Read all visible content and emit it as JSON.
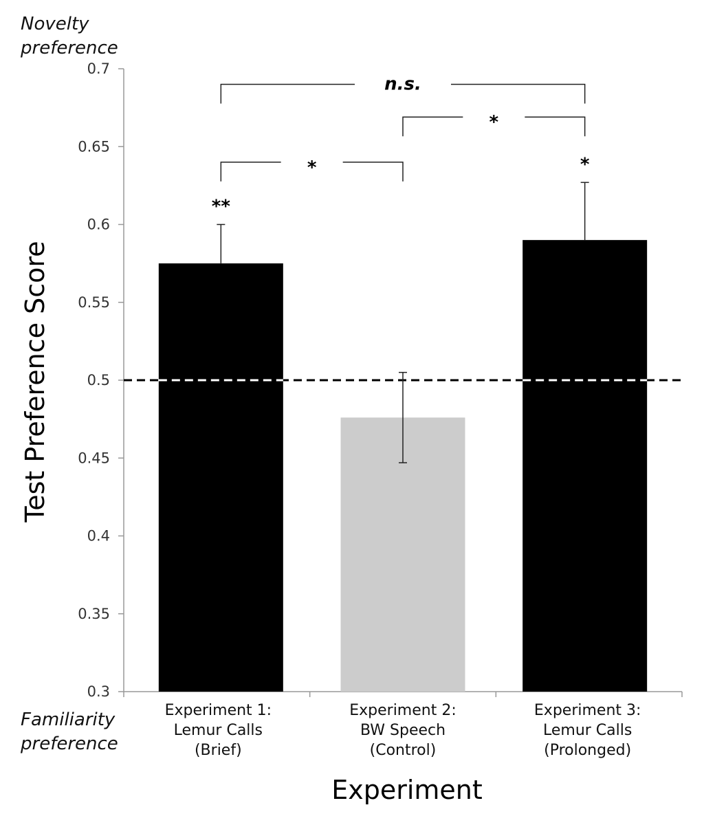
{
  "chart_data": {
    "type": "bar",
    "ylabel": "Test Preference Score",
    "xlabel": "Experiment",
    "ylim": [
      0.3,
      0.7
    ],
    "yticks": [
      "0.3",
      "0.35",
      "0.4",
      "0.45",
      "0.5",
      "0.55",
      "0.6",
      "0.65",
      "0.7"
    ],
    "y_top_annotation": [
      "Novelty",
      "preference"
    ],
    "y_bottom_annotation": [
      "Familiarity",
      "preference"
    ],
    "categories": [
      [
        "Experiment 1:",
        "Lemur Calls",
        "(Brief)"
      ],
      [
        "Experiment 2:",
        "BW Speech",
        "(Control)"
      ],
      [
        "Experiment 3:",
        "Lemur Calls",
        "(Prolonged)"
      ]
    ],
    "values": [
      0.575,
      0.476,
      0.59
    ],
    "error_upper": [
      0.6,
      0.505,
      0.627
    ],
    "error_lower": [
      null,
      0.447,
      null
    ],
    "bar_colors": [
      "#000000",
      "#cccccc",
      "#000000"
    ],
    "bar_significance": [
      "**",
      "",
      "*"
    ],
    "reference_line": {
      "y": 0.5,
      "style": "dashed"
    },
    "comparisons": [
      {
        "from": 0,
        "to": 1,
        "label": "*",
        "level": 0.64
      },
      {
        "from": 1,
        "to": 2,
        "label": "*",
        "level": 0.669
      },
      {
        "from": 0,
        "to": 2,
        "label": "n.s.",
        "level": 0.69
      }
    ],
    "grid": false,
    "legend": "none"
  }
}
